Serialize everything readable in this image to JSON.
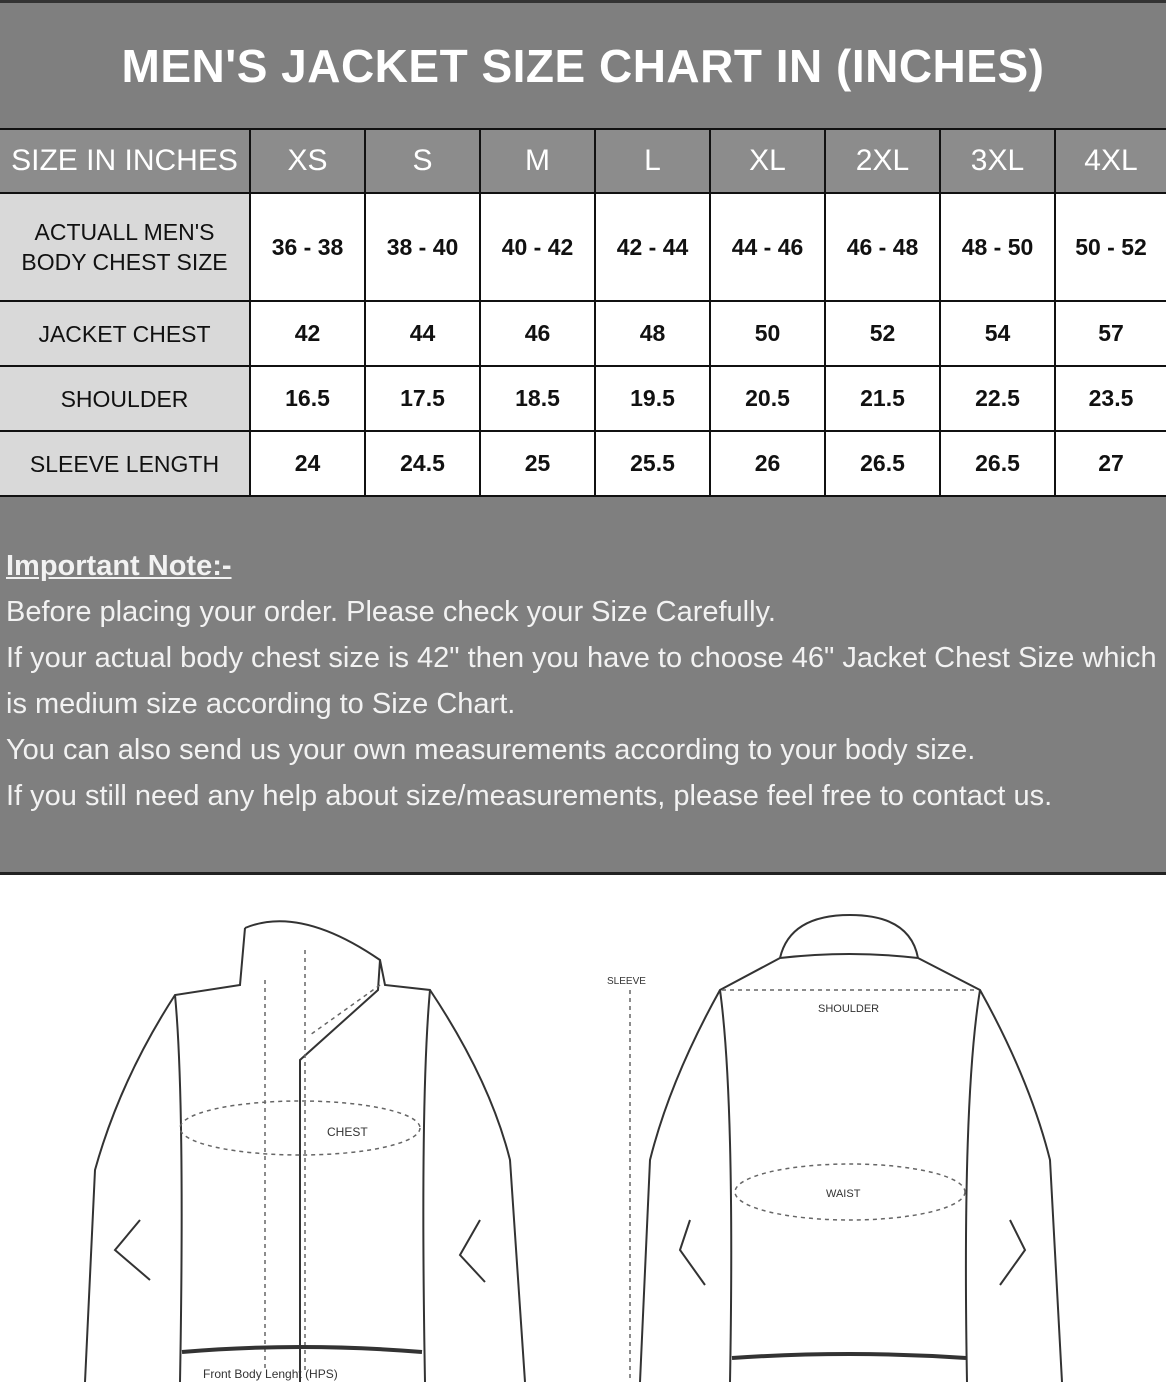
{
  "title": "MEN'S JACKET SIZE CHART IN (INCHES)",
  "table": {
    "header": [
      "SIZE IN INCHES",
      "XS",
      "S",
      "M",
      "L",
      "XL",
      "2XL",
      "3XL",
      "4XL"
    ],
    "rows": [
      [
        "ACTUALL MEN'S BODY CHEST SIZE",
        "36 - 38",
        "38 - 40",
        "40 - 42",
        "42 - 44",
        "44 - 46",
        "46 - 48",
        "48 - 50",
        "50 - 52"
      ],
      [
        "JACKET CHEST",
        "42",
        "44",
        "46",
        "48",
        "50",
        "52",
        "54",
        "57"
      ],
      [
        "SHOULDER",
        "16.5",
        "17.5",
        "18.5",
        "19.5",
        "20.5",
        "21.5",
        "22.5",
        "23.5"
      ],
      [
        "SLEEVE LENGTH",
        "24",
        "24.5",
        "25",
        "25.5",
        "26",
        "26.5",
        "26.5",
        "27"
      ]
    ]
  },
  "note": {
    "heading": "Important Note:-",
    "lines": [
      "Before placing your order. Please check your Size Carefully.",
      "If your actual body chest size is 42\" then you have to choose 46\" Jacket Chest Size which is medium size according to Size Chart.",
      "You can also send us your own measurements according to your body size.",
      "If you still need any help about size/measurements, please feel free to contact us."
    ]
  },
  "illustration": {
    "front": {
      "chest": "CHEST",
      "length": "Front Body Lenght (HPS)"
    },
    "back": {
      "sleeve": "SLEEVE",
      "shoulder": "SHOULDER",
      "waist": "WAIST"
    }
  }
}
